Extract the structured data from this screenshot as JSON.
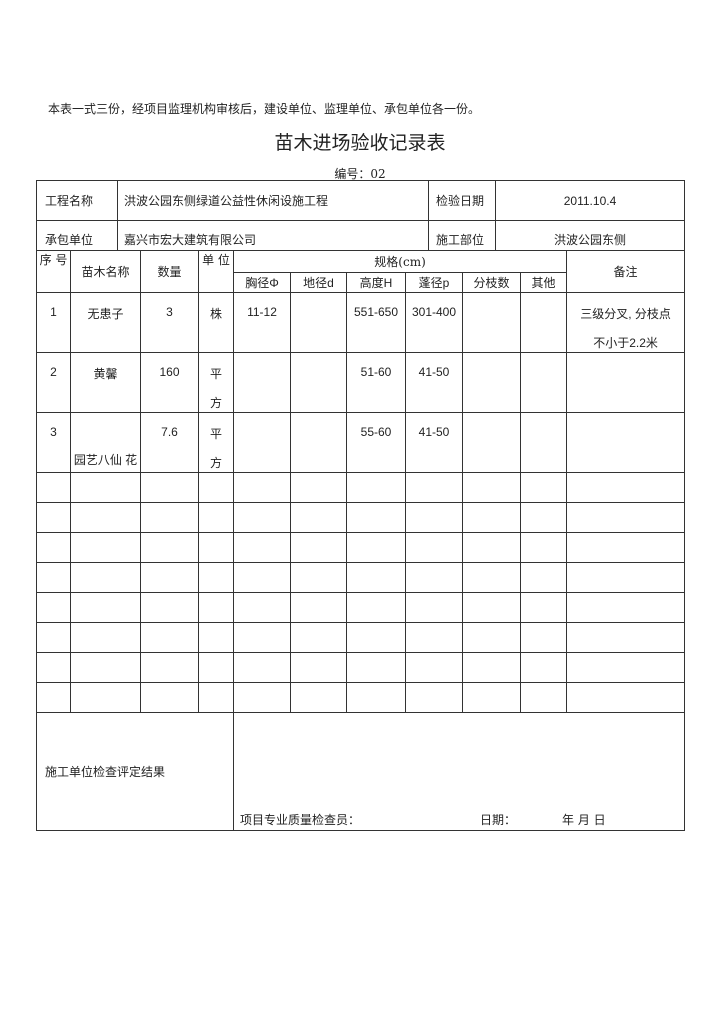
{
  "note": "本表一式三份，经项目监理机构审核后，建设单位、监理单位、承包单位各一份。",
  "title": "苗木进场验收记录表",
  "code": "编号：02",
  "info": {
    "project_label": "工程名称",
    "project_value": "洪波公园东侧绿道公益性休闲设施工程",
    "date_label": "检验日期",
    "date_value": "2011.10.4",
    "contractor_label": "承包单位",
    "contractor_value": "嘉兴市宏大建筑有限公司",
    "site_label": "施工部位",
    "site_value": "洪波公园东侧"
  },
  "headers": {
    "seq": "序 号",
    "name": "苗木名称",
    "qty": "数量",
    "unit": "单 位",
    "spec": "规格(cm)",
    "sub": [
      "胸径Φ",
      "地径d",
      "高度H",
      "蓬径p",
      "分枝数",
      "其他"
    ],
    "remark": "备注"
  },
  "rows": [
    {
      "seq": "1",
      "name": "无患子",
      "qty": "3",
      "unit": "株",
      "unit2": "",
      "dbh": "11-12",
      "d": "",
      "h": "551-650",
      "p": "301-400",
      "branch": "",
      "other": "",
      "remark": "三级分叉, 分枝点",
      "remark2": "不小于2.2米"
    },
    {
      "seq": "2",
      "name": "黄馨",
      "qty": "160",
      "unit": "平",
      "unit2": "方",
      "dbh": "",
      "d": "",
      "h": "51-60",
      "p": "41-50",
      "branch": "",
      "other": "",
      "remark": "",
      "remark2": ""
    },
    {
      "seq": "3",
      "name": "园艺八仙 花",
      "qty": "7.6",
      "unit": "平",
      "unit2": "方",
      "dbh": "",
      "d": "",
      "h": "55-60",
      "p": "41-50",
      "branch": "",
      "other": "",
      "remark": "",
      "remark2": ""
    }
  ],
  "footer": {
    "result_label": "施工单位检查评定结果",
    "inspector_label": "项目专业质量检查员：",
    "date_label": "日期：",
    "date_fmt": "年 月 日"
  }
}
